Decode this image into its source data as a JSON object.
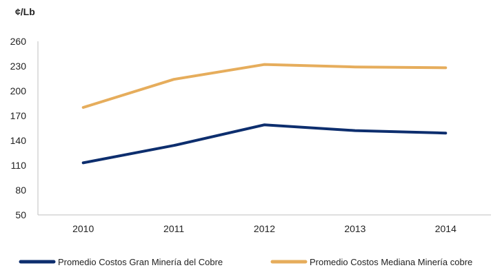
{
  "chart_data": {
    "type": "line",
    "unit_label": "¢/Lb",
    "categories": [
      "2010",
      "2011",
      "2012",
      "2013",
      "2014"
    ],
    "series": [
      {
        "name": "Promedio Costos Gran Minería del Cobre",
        "values": [
          113,
          134,
          159,
          152,
          149
        ],
        "color": "#0d2e6e"
      },
      {
        "name": "Promedio Costos Mediana Minería cobre",
        "values": [
          180,
          214,
          232,
          229,
          228
        ],
        "color": "#e6ad5c"
      }
    ],
    "yticks": [
      50,
      80,
      110,
      140,
      170,
      200,
      230,
      260
    ],
    "ylim": [
      50,
      260
    ],
    "grid": false,
    "legend_position": "bottom"
  }
}
